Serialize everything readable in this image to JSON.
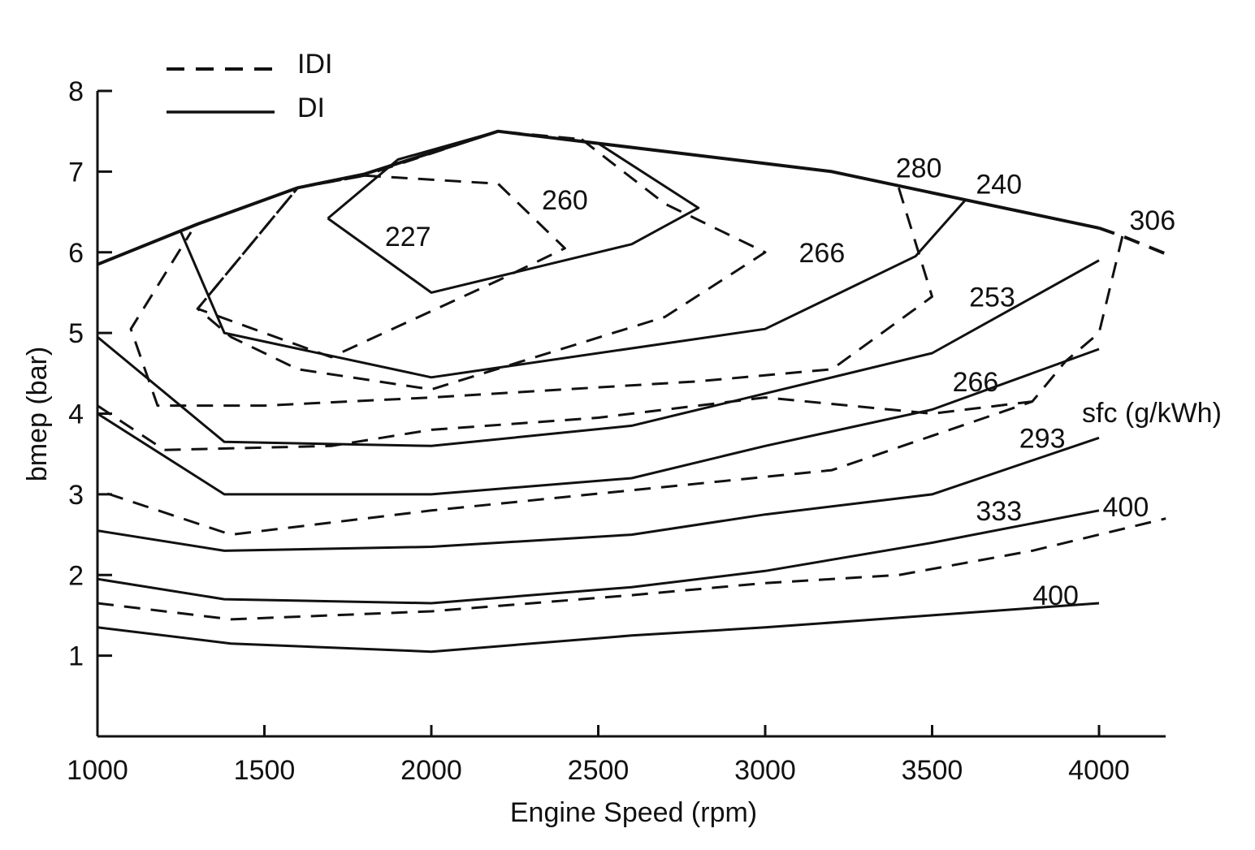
{
  "chart_data": {
    "type": "line",
    "xlabel": "Engine Speed (rpm)",
    "ylabel": "bmep (bar)",
    "xlim": [
      1000,
      4200
    ],
    "ylim": [
      0,
      8
    ],
    "x_ticks": [
      1000,
      1500,
      2000,
      2500,
      3000,
      3500,
      4000
    ],
    "y_ticks": [
      1,
      2,
      3,
      4,
      5,
      6,
      7,
      8
    ],
    "x_tick_labels": [
      "1000",
      "1500",
      "2000",
      "2500",
      "3000",
      "3500",
      "4000"
    ],
    "y_tick_labels": [
      "1",
      "2",
      "3",
      "4",
      "5",
      "6",
      "7",
      "8"
    ],
    "grid": false,
    "legend": {
      "position": "top-left",
      "entries": [
        {
          "label": "IDI",
          "style": "dashed"
        },
        {
          "label": "DI",
          "style": "solid"
        }
      ]
    },
    "unit_label": "sfc (g/kWh)",
    "series": [
      {
        "engine": "DI",
        "style": "solid",
        "kind": "full-load",
        "points": [
          [
            1000,
            5.85
          ],
          [
            1300,
            6.35
          ],
          [
            1600,
            6.8
          ],
          [
            1800,
            6.97
          ],
          [
            2200,
            7.5
          ],
          [
            2500,
            7.35
          ],
          [
            3000,
            7.1
          ],
          [
            3200,
            7.0
          ],
          [
            3600,
            6.65
          ],
          [
            4000,
            6.3
          ]
        ]
      },
      {
        "engine": "IDI",
        "style": "dashed",
        "kind": "full-load",
        "points": [
          [
            4000,
            6.3
          ],
          [
            4070,
            6.2
          ],
          [
            4200,
            5.98
          ]
        ]
      },
      {
        "engine": "DI",
        "style": "solid",
        "sfc": "227",
        "points": [
          [
            1690,
            6.42
          ],
          [
            1900,
            7.15
          ],
          [
            2200,
            7.5
          ],
          [
            2500,
            7.35
          ],
          [
            2800,
            6.55
          ],
          [
            2600,
            6.1
          ],
          [
            2000,
            5.5
          ],
          [
            1690,
            6.42
          ]
        ]
      },
      {
        "engine": "IDI",
        "style": "dashed",
        "sfc": "260",
        "points": [
          [
            1800,
            6.95
          ],
          [
            2200,
            6.85
          ],
          [
            2400,
            6.05
          ],
          [
            2200,
            5.65
          ],
          [
            1700,
            4.7
          ],
          [
            1300,
            5.3
          ],
          [
            1600,
            6.8
          ],
          [
            1800,
            6.95
          ]
        ]
      },
      {
        "engine": "IDI",
        "style": "dashed",
        "sfc": "266",
        "points": [
          [
            2450,
            7.4
          ],
          [
            2700,
            6.6
          ],
          [
            3000,
            6.0
          ],
          [
            2700,
            5.2
          ],
          [
            2000,
            4.3
          ],
          [
            1600,
            4.55
          ],
          [
            1400,
            4.95
          ],
          [
            1300,
            5.3
          ],
          [
            1600,
            6.8
          ],
          [
            1800,
            6.95
          ],
          [
            2200,
            7.5
          ],
          [
            2450,
            7.4
          ]
        ]
      },
      {
        "engine": "IDI",
        "style": "dashed",
        "sfc": "280",
        "points": [
          [
            3400,
            6.8
          ],
          [
            3500,
            5.45
          ],
          [
            3200,
            4.55
          ],
          [
            2800,
            4.4
          ],
          [
            2000,
            4.2
          ],
          [
            1500,
            4.1
          ],
          [
            1180,
            4.1
          ],
          [
            1100,
            5.05
          ],
          [
            1280,
            6.25
          ]
        ]
      },
      {
        "engine": "DI",
        "style": "solid",
        "sfc": "240",
        "points": [
          [
            1250,
            6.25
          ],
          [
            1380,
            5.0
          ],
          [
            2000,
            4.45
          ],
          [
            3000,
            5.05
          ],
          [
            3450,
            5.95
          ],
          [
            3600,
            6.65
          ]
        ]
      },
      {
        "engine": "IDI",
        "style": "dashed",
        "sfc": "306",
        "points": [
          [
            4070,
            6.2
          ],
          [
            4000,
            5.0
          ],
          [
            3900,
            4.65
          ],
          [
            3800,
            4.15
          ],
          [
            3200,
            3.3
          ],
          [
            2600,
            3.05
          ],
          [
            2000,
            2.8
          ],
          [
            1400,
            2.5
          ],
          [
            1000,
            3.05
          ]
        ]
      },
      {
        "engine": "DI",
        "style": "solid",
        "sfc": "253",
        "points": [
          [
            1000,
            4.95
          ],
          [
            1380,
            3.65
          ],
          [
            2000,
            3.6
          ],
          [
            2600,
            3.85
          ],
          [
            3000,
            4.25
          ],
          [
            3500,
            4.75
          ],
          [
            4000,
            5.9
          ]
        ]
      },
      {
        "engine": "DI",
        "style": "solid",
        "sfc": "266",
        "points": [
          [
            1000,
            4.0
          ],
          [
            1380,
            3.0
          ],
          [
            2000,
            3.0
          ],
          [
            2600,
            3.2
          ],
          [
            3000,
            3.6
          ],
          [
            3500,
            4.05
          ],
          [
            4000,
            4.8
          ]
        ]
      },
      {
        "engine": "IDI",
        "style": "dashed",
        "sfc": "IDI-inner",
        "points": [
          [
            1000,
            4.1
          ],
          [
            1200,
            3.55
          ],
          [
            1700,
            3.6
          ],
          [
            2000,
            3.8
          ],
          [
            2500,
            3.95
          ],
          [
            3000,
            4.2
          ],
          [
            3500,
            4.0
          ],
          [
            3800,
            4.15
          ]
        ]
      },
      {
        "engine": "DI",
        "style": "solid",
        "sfc": "293",
        "points": [
          [
            1000,
            2.55
          ],
          [
            1380,
            2.3
          ],
          [
            2000,
            2.35
          ],
          [
            2600,
            2.5
          ],
          [
            3000,
            2.75
          ],
          [
            3500,
            3.0
          ],
          [
            4000,
            3.7
          ]
        ]
      },
      {
        "engine": "DI",
        "style": "solid",
        "sfc": "333",
        "points": [
          [
            1000,
            1.95
          ],
          [
            1380,
            1.7
          ],
          [
            2000,
            1.65
          ],
          [
            2600,
            1.85
          ],
          [
            3000,
            2.05
          ],
          [
            3500,
            2.4
          ],
          [
            4000,
            2.8
          ]
        ]
      },
      {
        "engine": "IDI",
        "style": "dashed",
        "sfc": "400",
        "points": [
          [
            1000,
            1.65
          ],
          [
            1400,
            1.45
          ],
          [
            2000,
            1.55
          ],
          [
            2600,
            1.75
          ],
          [
            3000,
            1.9
          ],
          [
            3400,
            2.0
          ],
          [
            3800,
            2.3
          ],
          [
            4200,
            2.7
          ]
        ]
      },
      {
        "engine": "DI",
        "style": "solid",
        "sfc": "400",
        "points": [
          [
            1000,
            1.35
          ],
          [
            1400,
            1.15
          ],
          [
            2000,
            1.05
          ],
          [
            2600,
            1.25
          ],
          [
            3000,
            1.35
          ],
          [
            3500,
            1.5
          ],
          [
            4000,
            1.65
          ]
        ]
      }
    ],
    "annotations": [
      {
        "text": "227",
        "x": 1930,
        "y": 6.2
      },
      {
        "text": "260",
        "x": 2400,
        "y": 6.65
      },
      {
        "text": "266",
        "x": 3170,
        "y": 6.0
      },
      {
        "text": "280",
        "x": 3460,
        "y": 7.05
      },
      {
        "text": "240",
        "x": 3700,
        "y": 6.85
      },
      {
        "text": "306",
        "x": 4160,
        "y": 6.4
      },
      {
        "text": "253",
        "x": 3680,
        "y": 5.45
      },
      {
        "text": "266",
        "x": 3630,
        "y": 4.4
      },
      {
        "text": "293",
        "x": 3830,
        "y": 3.7
      },
      {
        "text": "333",
        "x": 3700,
        "y": 2.8
      },
      {
        "text": "400",
        "x": 4080,
        "y": 2.85
      },
      {
        "text": "400",
        "x": 3870,
        "y": 1.75
      }
    ]
  }
}
